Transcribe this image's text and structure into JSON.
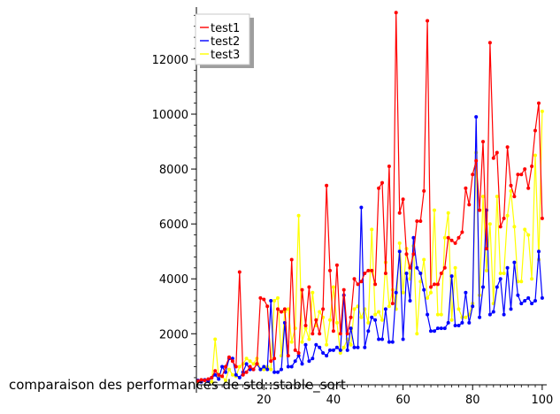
{
  "chart_data": {
    "type": "line",
    "title": "",
    "caption": "comparaison des performances de std::stable_sort",
    "xlabel": "",
    "ylabel": "",
    "xlim": [
      0,
      101
    ],
    "ylim": [
      250,
      13900
    ],
    "x_ticks": [
      20,
      40,
      60,
      80,
      100
    ],
    "y_ticks": [
      2000,
      4000,
      6000,
      8000,
      10000,
      12000
    ],
    "x_minor_step": 2,
    "y_minor_step": 400,
    "legend": {
      "placement": "top-left",
      "shadow": true
    },
    "series": [
      {
        "name": "test1",
        "color": "#ff0000",
        "values": [
          280,
          320,
          300,
          350,
          400,
          650,
          500,
          450,
          800,
          1150,
          1000,
          800,
          4250,
          500,
          600,
          800,
          700,
          900,
          3300,
          3250,
          3000,
          1000,
          1100,
          2900,
          2800,
          2900,
          1200,
          4700,
          1400,
          1300,
          3600,
          2300,
          3700,
          2000,
          2500,
          2000,
          2900,
          7400,
          4300,
          2100,
          4500,
          2000,
          3600,
          2000,
          2600,
          4000,
          3800,
          3900,
          4200,
          4300,
          4300,
          3800,
          7300,
          7500,
          4200,
          8100,
          3100,
          13700,
          6400,
          6900,
          4900,
          4400,
          4900,
          6100,
          6100,
          7200,
          13400,
          3700,
          3800,
          3800,
          4200,
          4400,
          5500,
          5400,
          5300,
          5500,
          5700,
          7300,
          6700,
          7800,
          8300,
          6500,
          9000,
          5100,
          12600,
          8400,
          8600,
          5900,
          6200,
          8800,
          7400,
          7000,
          7800,
          7800,
          8000,
          7300,
          8100,
          9400,
          10400,
          6200
        ]
      },
      {
        "name": "test2",
        "color": "#0000ff",
        "values": [
          300,
          250,
          320,
          270,
          400,
          500,
          350,
          800,
          600,
          1100,
          1100,
          500,
          400,
          600,
          900,
          700,
          700,
          900,
          700,
          800,
          700,
          3200,
          600,
          600,
          700,
          2400,
          800,
          800,
          1000,
          1200,
          900,
          1600,
          1000,
          1100,
          1600,
          1500,
          1300,
          1200,
          1400,
          1400,
          1500,
          1400,
          3400,
          1400,
          2200,
          1500,
          1500,
          6600,
          1500,
          2100,
          2600,
          2500,
          1800,
          1800,
          2900,
          1700,
          1700,
          3500,
          5000,
          1800,
          4200,
          3200,
          5500,
          4400,
          4200,
          3600,
          2700,
          2100,
          2100,
          2200,
          2200,
          2200,
          2400,
          4100,
          2300,
          2300,
          2400,
          3500,
          2400,
          3000,
          9900,
          2600,
          3700,
          6500,
          2700,
          2800,
          3700,
          4000,
          2700,
          4400,
          2900,
          4600,
          3400,
          3100,
          3200,
          3300,
          3100,
          3200,
          5000,
          3300
        ]
      },
      {
        "name": "test3",
        "color": "#ffff00",
        "values": [
          250,
          280,
          320,
          300,
          250,
          1800,
          400,
          450,
          300,
          700,
          500,
          450,
          800,
          900,
          1100,
          1000,
          900,
          1100,
          700,
          700,
          800,
          700,
          3200,
          3300,
          1200,
          2800,
          2900,
          1700,
          2200,
          6300,
          1700,
          2200,
          1800,
          3500,
          2300,
          2800,
          2600,
          1600,
          2500,
          3700,
          2400,
          1300,
          1500,
          1800,
          1600,
          2900,
          3000,
          2600,
          2900,
          2400,
          5800,
          2700,
          2800,
          2500,
          4600,
          3000,
          3600,
          2900,
          5300,
          3500,
          5100,
          4000,
          5200,
          2000,
          3900,
          4700,
          3300,
          3500,
          6500,
          2700,
          2700,
          5500,
          6400,
          2500,
          4400,
          2900,
          2600,
          2600,
          2700,
          3100,
          8600,
          3400,
          7000,
          4300,
          6000,
          3100,
          7000,
          4200,
          4200,
          6300,
          7200,
          5900,
          3900,
          3900,
          5800,
          5600,
          4000,
          8500,
          4700,
          10100
        ]
      }
    ]
  }
}
